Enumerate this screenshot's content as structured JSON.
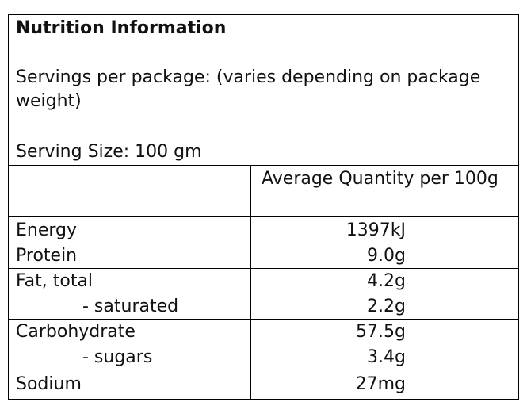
{
  "header": {
    "title": "Nutrition Information",
    "servings": "Servings per package: (varies depending on package weight)",
    "serving_size": "Serving Size: 100 gm"
  },
  "table": {
    "column_header": "Average Quantity per 100g",
    "rows": [
      [
        "Energy",
        "1397kJ"
      ],
      [
        "Protein",
        "9.0g"
      ],
      [
        "Fat, total",
        "4.2g"
      ],
      [
        "- saturated",
        "2.2g"
      ],
      [
        "Carbohydrate",
        "57.5g"
      ],
      [
        "- sugars",
        "3.4g"
      ],
      [
        "Sodium",
        "27mg"
      ]
    ]
  }
}
